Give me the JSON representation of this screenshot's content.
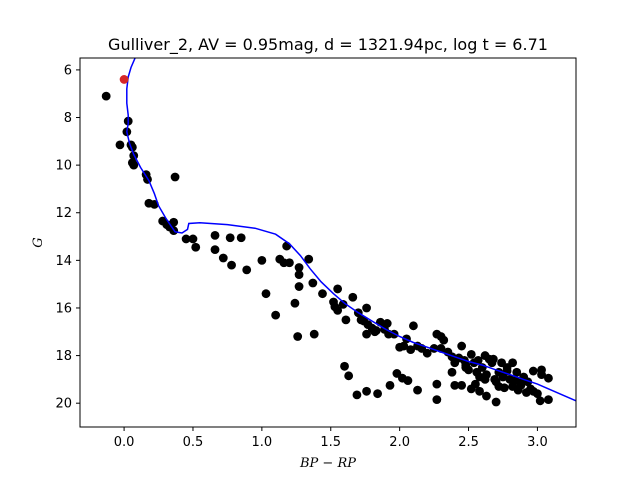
{
  "chart_data": {
    "type": "scatter",
    "title": "Gulliver_2, AV = 0.95mag, d = 1321.94pc, log t = 6.71",
    "xlabel": "BP − RP",
    "ylabel": "G",
    "xlim": [
      -0.32,
      3.28
    ],
    "ylim": [
      21.0,
      5.5
    ],
    "y_inverted": true,
    "grid": false,
    "x_ticks": [
      0.0,
      0.5,
      1.0,
      1.5,
      2.0,
      2.5,
      3.0
    ],
    "x_tick_labels": [
      "0.0",
      "0.5",
      "1.0",
      "1.5",
      "2.0",
      "2.5",
      "3.0"
    ],
    "y_ticks": [
      6,
      8,
      10,
      12,
      14,
      16,
      18,
      20
    ],
    "y_tick_labels": [
      "6",
      "8",
      "10",
      "12",
      "14",
      "16",
      "18",
      "20"
    ],
    "colors": {
      "members": "#000000",
      "highlight": "#d62728",
      "isochrone": "#0000ff"
    },
    "series": [
      {
        "kind": "points",
        "points": [
          [
            -0.13,
            7.1
          ],
          [
            0.03,
            8.15
          ],
          [
            0.02,
            8.6
          ],
          [
            -0.03,
            9.15
          ],
          [
            0.05,
            9.15
          ],
          [
            0.06,
            9.25
          ],
          [
            0.07,
            9.6
          ],
          [
            0.06,
            9.9
          ],
          [
            0.07,
            10.0
          ],
          [
            0.16,
            10.4
          ],
          [
            0.17,
            10.6
          ],
          [
            0.37,
            10.5
          ],
          [
            0.18,
            11.6
          ],
          [
            0.22,
            11.65
          ],
          [
            0.28,
            12.35
          ],
          [
            0.31,
            12.5
          ],
          [
            0.33,
            12.6
          ],
          [
            0.36,
            12.4
          ],
          [
            0.36,
            12.75
          ],
          [
            0.45,
            13.1
          ],
          [
            0.5,
            13.1
          ],
          [
            0.52,
            13.45
          ],
          [
            0.66,
            12.95
          ],
          [
            0.66,
            13.55
          ],
          [
            0.72,
            13.9
          ],
          [
            0.77,
            13.05
          ],
          [
            0.78,
            14.2
          ],
          [
            0.85,
            13.05
          ],
          [
            0.89,
            14.4
          ],
          [
            1.0,
            14.0
          ],
          [
            1.03,
            15.4
          ],
          [
            1.1,
            16.3
          ],
          [
            1.13,
            13.95
          ],
          [
            1.16,
            14.1
          ],
          [
            1.18,
            13.4
          ],
          [
            1.2,
            14.1
          ],
          [
            1.24,
            15.8
          ],
          [
            1.26,
            17.2
          ],
          [
            1.27,
            14.3
          ],
          [
            1.27,
            14.6
          ],
          [
            1.27,
            15.1
          ],
          [
            1.34,
            13.95
          ],
          [
            1.37,
            14.95
          ],
          [
            1.38,
            17.1
          ],
          [
            1.44,
            15.4
          ],
          [
            1.52,
            15.75
          ],
          [
            1.53,
            15.95
          ],
          [
            1.55,
            16.1
          ],
          [
            1.55,
            15.2
          ],
          [
            1.59,
            15.85
          ],
          [
            1.61,
            16.5
          ],
          [
            1.66,
            15.55
          ],
          [
            1.7,
            16.2
          ],
          [
            1.72,
            16.5
          ],
          [
            1.74,
            16.55
          ],
          [
            1.76,
            16.0
          ],
          [
            1.77,
            16.7
          ],
          [
            1.8,
            16.85
          ],
          [
            1.83,
            16.95
          ],
          [
            1.86,
            16.6
          ],
          [
            1.89,
            16.9
          ],
          [
            1.91,
            16.65
          ],
          [
            1.6,
            18.45
          ],
          [
            1.63,
            18.85
          ],
          [
            1.69,
            19.65
          ],
          [
            1.76,
            19.5
          ],
          [
            1.84,
            19.6
          ],
          [
            1.93,
            19.25
          ],
          [
            1.98,
            18.75
          ],
          [
            2.02,
            18.95
          ],
          [
            2.06,
            19.05
          ],
          [
            1.76,
            17.1
          ],
          [
            1.82,
            17.0
          ],
          [
            1.92,
            17.1
          ],
          [
            1.96,
            17.1
          ],
          [
            2.0,
            17.65
          ],
          [
            2.03,
            17.6
          ],
          [
            2.05,
            17.3
          ],
          [
            2.08,
            17.75
          ],
          [
            2.1,
            16.75
          ],
          [
            2.13,
            17.6
          ],
          [
            2.16,
            17.7
          ],
          [
            2.2,
            17.9
          ],
          [
            2.25,
            17.7
          ],
          [
            2.27,
            17.1
          ],
          [
            2.3,
            17.7
          ],
          [
            2.32,
            17.35
          ],
          [
            2.35,
            17.85
          ],
          [
            2.38,
            18.05
          ],
          [
            2.4,
            18.3
          ],
          [
            2.43,
            18.1
          ],
          [
            2.45,
            17.6
          ],
          [
            2.47,
            18.2
          ],
          [
            2.48,
            18.5
          ],
          [
            2.5,
            18.6
          ],
          [
            2.52,
            17.95
          ],
          [
            2.54,
            18.3
          ],
          [
            2.56,
            18.7
          ],
          [
            2.58,
            18.9
          ],
          [
            2.6,
            18.5
          ],
          [
            2.63,
            18.8
          ],
          [
            2.65,
            18.15
          ],
          [
            2.67,
            18.3
          ],
          [
            2.69,
            19.0
          ],
          [
            2.7,
            19.1
          ],
          [
            2.72,
            19.3
          ],
          [
            2.74,
            18.3
          ],
          [
            2.76,
            19.35
          ],
          [
            2.78,
            18.5
          ],
          [
            2.8,
            19.0
          ],
          [
            2.82,
            19.3
          ],
          [
            2.84,
            19.05
          ],
          [
            2.86,
            19.45
          ],
          [
            2.88,
            19.25
          ],
          [
            2.9,
            18.9
          ],
          [
            2.93,
            19.1
          ],
          [
            2.95,
            19.4
          ],
          [
            2.97,
            18.65
          ],
          [
            3.0,
            19.6
          ],
          [
            3.03,
            18.6
          ],
          [
            2.3,
            17.2
          ],
          [
            2.38,
            18.7
          ],
          [
            2.45,
            19.25
          ],
          [
            2.52,
            19.4
          ],
          [
            2.58,
            19.5
          ],
          [
            2.63,
            19.7
          ],
          [
            2.7,
            19.95
          ],
          [
            2.75,
            18.9
          ],
          [
            2.82,
            18.3
          ],
          [
            2.92,
            19.55
          ],
          [
            2.97,
            19.5
          ],
          [
            3.02,
            19.9
          ],
          [
            3.08,
            19.85
          ],
          [
            2.27,
            19.85
          ],
          [
            2.13,
            19.45
          ],
          [
            2.27,
            19.2
          ],
          [
            2.4,
            19.25
          ],
          [
            2.57,
            18.2
          ],
          [
            2.62,
            18.0
          ],
          [
            2.68,
            18.15
          ],
          [
            2.72,
            18.7
          ],
          [
            2.78,
            18.65
          ],
          [
            2.85,
            18.7
          ],
          [
            2.9,
            19.05
          ],
          [
            3.08,
            18.95
          ],
          [
            3.03,
            18.8
          ],
          [
            2.48,
            18.4
          ],
          [
            2.55,
            19.2
          ],
          [
            2.62,
            19.0
          ]
        ]
      },
      {
        "kind": "highlight",
        "points": [
          [
            0.0,
            6.4
          ]
        ]
      },
      {
        "kind": "line",
        "points": [
          [
            0.08,
            5.5
          ],
          [
            0.05,
            5.9
          ],
          [
            0.03,
            6.3
          ],
          [
            0.02,
            6.8
          ],
          [
            0.02,
            7.4
          ],
          [
            0.03,
            7.9
          ],
          [
            0.03,
            8.25
          ],
          [
            0.02,
            8.6
          ],
          [
            0.04,
            9.1
          ],
          [
            0.07,
            9.55
          ],
          [
            0.12,
            10.1
          ],
          [
            0.18,
            10.65
          ],
          [
            0.22,
            11.2
          ],
          [
            0.25,
            11.7
          ],
          [
            0.3,
            12.2
          ],
          [
            0.34,
            12.55
          ],
          [
            0.37,
            12.8
          ],
          [
            0.42,
            12.85
          ],
          [
            0.46,
            12.7
          ],
          [
            0.47,
            12.45
          ],
          [
            0.55,
            12.42
          ],
          [
            0.75,
            12.5
          ],
          [
            0.95,
            12.65
          ],
          [
            1.1,
            12.9
          ],
          [
            1.2,
            13.3
          ],
          [
            1.28,
            13.8
          ],
          [
            1.35,
            14.35
          ],
          [
            1.43,
            14.9
          ],
          [
            1.52,
            15.4
          ],
          [
            1.6,
            15.8
          ],
          [
            1.7,
            16.2
          ],
          [
            1.8,
            16.55
          ],
          [
            1.9,
            16.9
          ],
          [
            2.0,
            17.2
          ],
          [
            2.1,
            17.45
          ],
          [
            2.2,
            17.65
          ],
          [
            2.3,
            17.85
          ],
          [
            2.4,
            18.05
          ],
          [
            2.5,
            18.25
          ],
          [
            2.6,
            18.4
          ],
          [
            2.7,
            18.6
          ],
          [
            2.8,
            18.8
          ],
          [
            2.9,
            19.0
          ],
          [
            3.0,
            19.2
          ],
          [
            3.1,
            19.45
          ],
          [
            3.2,
            19.7
          ],
          [
            3.28,
            19.9
          ]
        ]
      }
    ]
  }
}
